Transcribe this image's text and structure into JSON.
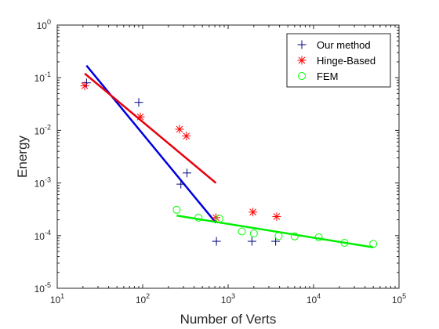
{
  "chart_data": {
    "type": "scatter",
    "title": "",
    "xlabel": "Number of Verts",
    "ylabel": "Energy",
    "xscale": "log",
    "yscale": "log",
    "xlim": [
      10,
      100000
    ],
    "ylim": [
      1e-05,
      1
    ],
    "grid": false,
    "legend_position": "top-right",
    "x_tick_labels": [
      {
        "value": 10,
        "base": "10",
        "exp": "1"
      },
      {
        "value": 100,
        "base": "10",
        "exp": "2"
      },
      {
        "value": 1000,
        "base": "10",
        "exp": "3"
      },
      {
        "value": 10000,
        "base": "10",
        "exp": "4"
      },
      {
        "value": 100000,
        "base": "10",
        "exp": "5"
      }
    ],
    "y_tick_labels": [
      {
        "value": 1e-05,
        "base": "10",
        "exp": "-5"
      },
      {
        "value": 0.0001,
        "base": "10",
        "exp": "-4"
      },
      {
        "value": 0.001,
        "base": "10",
        "exp": "-3"
      },
      {
        "value": 0.01,
        "base": "10",
        "exp": "-2"
      },
      {
        "value": 0.1,
        "base": "10",
        "exp": "-1"
      },
      {
        "value": 1,
        "base": "10",
        "exp": "0"
      }
    ],
    "series": [
      {
        "name": "Our method",
        "marker": "plus",
        "color": "#00007F",
        "x": [
          22,
          90,
          280,
          330,
          730,
          1900,
          3600
        ],
        "y": [
          0.08,
          0.034,
          0.00095,
          0.00155,
          7.8e-05,
          7.8e-05,
          7.8e-05
        ]
      },
      {
        "name": "Hinge-Based",
        "marker": "asterisk",
        "color": "#FF0000",
        "x": [
          21,
          94,
          270,
          325,
          720,
          1950,
          3700
        ],
        "y": [
          0.07,
          0.018,
          0.0105,
          0.0078,
          0.00022,
          0.00028,
          0.00023
        ],
        "fit": {
          "color": "#E8000B",
          "x": [
            21,
            720
          ],
          "y": [
            0.12,
            0.001
          ]
        }
      },
      {
        "name": "FEM",
        "marker": "circle",
        "color": "#00FF00",
        "x": [
          250,
          450,
          790,
          1450,
          2000,
          3900,
          6000,
          11500,
          23000,
          50000
        ],
        "y": [
          0.00031,
          0.00022,
          0.00021,
          0.00012,
          0.00011,
          9.8e-05,
          9.7e-05,
          9.3e-05,
          7.3e-05,
          7e-05
        ],
        "fit": {
          "color": "#00EE00",
          "x": [
            250,
            50000
          ],
          "y": [
            0.00024,
            6e-05
          ]
        }
      }
    ],
    "extra_fit": {
      "color": "#0000E0",
      "x": [
        22,
        720
      ],
      "y": [
        0.17,
        0.000175
      ]
    }
  }
}
